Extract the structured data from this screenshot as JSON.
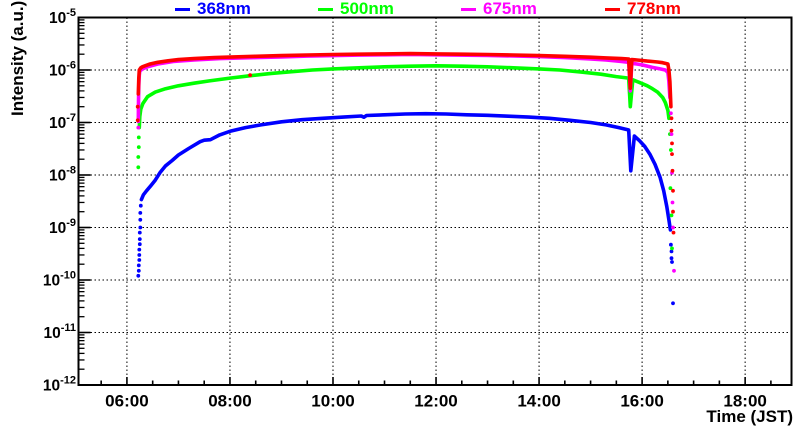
{
  "chart_data": {
    "type": "scatter",
    "title": "",
    "xlabel": "Time (JST)",
    "ylabel": "Intensity (a.u.)",
    "grid": true,
    "legend_position": "top",
    "axis_color": "#000000",
    "grid_color": "#000000",
    "x_axis": {
      "unit": "hour JST",
      "min_hour": 5.06,
      "max_hour": 18.9,
      "minor_step_hours": 0.5,
      "major_ticks": [
        {
          "hour": 6,
          "label": "06:00"
        },
        {
          "hour": 8,
          "label": "08:00"
        },
        {
          "hour": 10,
          "label": "10:00"
        },
        {
          "hour": 12,
          "label": "12:00"
        },
        {
          "hour": 14,
          "label": "14:00"
        },
        {
          "hour": 16,
          "label": "16:00"
        },
        {
          "hour": 18,
          "label": "18:00"
        }
      ]
    },
    "y_axis": {
      "scale": "log",
      "min": 1e-12,
      "max": 1e-05,
      "min_exp": -12,
      "max_exp": -5,
      "tick_exponents": [
        -5,
        -6,
        -7,
        -8,
        -9,
        -10,
        -11,
        -12
      ]
    },
    "series": [
      {
        "name": "368nm",
        "color": "#0000ff",
        "scatter": [
          [
            6.22,
            1.2e-10
          ],
          [
            6.23,
            1.5e-10
          ],
          [
            6.23,
            1.9e-10
          ],
          [
            6.24,
            2.4e-10
          ],
          [
            6.24,
            3e-10
          ],
          [
            6.24,
            3.8e-10
          ],
          [
            6.25,
            4.8e-10
          ],
          [
            6.25,
            6e-10
          ],
          [
            6.25,
            8e-10
          ],
          [
            6.26,
            1e-09
          ],
          [
            6.26,
            1.4e-09
          ],
          [
            6.26,
            1.9e-09
          ],
          [
            6.27,
            2.6e-09
          ],
          [
            16.56,
            4.7e-10
          ],
          [
            16.57,
            3.5e-10
          ],
          [
            16.57,
            2.6e-10
          ],
          [
            16.58,
            2.2e-10
          ],
          [
            16.6,
            3.6e-11
          ]
        ],
        "curve": [
          [
            6.28,
            3.4e-09
          ],
          [
            6.32,
            4.2e-09
          ],
          [
            6.38,
            5e-09
          ],
          [
            6.45,
            6e-09
          ],
          [
            6.55,
            8e-09
          ],
          [
            6.64,
            1.1e-08
          ],
          [
            6.75,
            1.5e-08
          ],
          [
            6.88,
            1.9e-08
          ],
          [
            7.0,
            2.4e-08
          ],
          [
            7.2,
            3.2e-08
          ],
          [
            7.42,
            4.3e-08
          ],
          [
            7.5,
            4.6e-08
          ],
          [
            7.62,
            4.7e-08
          ],
          [
            7.8,
            5.8e-08
          ],
          [
            8.0,
            6.8e-08
          ],
          [
            8.3,
            8e-08
          ],
          [
            8.6,
            9e-08
          ],
          [
            9.0,
            1.03e-07
          ],
          [
            9.4,
            1.13e-07
          ],
          [
            9.8,
            1.2e-07
          ],
          [
            10.2,
            1.27e-07
          ],
          [
            10.55,
            1.33e-07
          ],
          [
            10.6,
            1.26e-07
          ],
          [
            10.65,
            1.36e-07
          ],
          [
            11.0,
            1.4e-07
          ],
          [
            11.4,
            1.45e-07
          ],
          [
            11.8,
            1.47e-07
          ],
          [
            12.2,
            1.45e-07
          ],
          [
            12.6,
            1.4e-07
          ],
          [
            13.0,
            1.37e-07
          ],
          [
            13.4,
            1.32e-07
          ],
          [
            13.8,
            1.27e-07
          ],
          [
            14.2,
            1.2e-07
          ],
          [
            14.6,
            1.1e-07
          ],
          [
            15.0,
            1e-07
          ],
          [
            15.3,
            9e-08
          ],
          [
            15.55,
            8e-08
          ],
          [
            15.74,
            7.2e-08
          ],
          [
            15.78,
            1.2e-08
          ],
          [
            15.85,
            5.5e-08
          ],
          [
            15.95,
            4.5e-08
          ],
          [
            16.05,
            3.5e-08
          ],
          [
            16.15,
            2.5e-08
          ],
          [
            16.25,
            1.6e-08
          ],
          [
            16.35,
            9e-09
          ],
          [
            16.42,
            5e-09
          ],
          [
            16.48,
            2.5e-09
          ],
          [
            16.52,
            1.4e-09
          ],
          [
            16.55,
            9e-10
          ]
        ]
      },
      {
        "name": "500nm",
        "color": "#00ff00",
        "scatter": [
          [
            6.22,
            1.4e-08
          ],
          [
            6.22,
            2.2e-08
          ],
          [
            6.23,
            3.4e-08
          ],
          [
            6.23,
            5.2e-08
          ],
          [
            16.54,
            6e-08
          ],
          [
            16.56,
            3e-08
          ],
          [
            16.55,
            5.6e-09
          ],
          [
            16.57,
            1.7e-09
          ],
          [
            16.58,
            4e-10
          ]
        ],
        "curve": [
          [
            6.24,
            8e-08
          ],
          [
            6.25,
            1.3e-07
          ],
          [
            6.27,
            1.8e-07
          ],
          [
            6.31,
            2.3e-07
          ],
          [
            6.4,
            3.1e-07
          ],
          [
            6.55,
            3.8e-07
          ],
          [
            6.75,
            4.4e-07
          ],
          [
            7.0,
            5e-07
          ],
          [
            7.3,
            5.6e-07
          ],
          [
            7.6,
            6.2e-07
          ],
          [
            8.0,
            7e-07
          ],
          [
            8.4,
            7.8e-07
          ],
          [
            8.8,
            8.6e-07
          ],
          [
            9.2,
            9.3e-07
          ],
          [
            9.6,
            1e-06
          ],
          [
            10.0,
            1.05e-06
          ],
          [
            10.5,
            1.1e-06
          ],
          [
            11.0,
            1.15e-06
          ],
          [
            11.5,
            1.18e-06
          ],
          [
            12.0,
            1.2e-06
          ],
          [
            12.5,
            1.18e-06
          ],
          [
            13.0,
            1.15e-06
          ],
          [
            13.5,
            1.1e-06
          ],
          [
            14.0,
            1.05e-06
          ],
          [
            14.4,
            1e-06
          ],
          [
            14.8,
            9.2e-07
          ],
          [
            15.2,
            8.3e-07
          ],
          [
            15.5,
            7.5e-07
          ],
          [
            15.74,
            7e-07
          ],
          [
            15.77,
            2e-07
          ],
          [
            15.82,
            6.5e-07
          ],
          [
            16.0,
            5.5e-07
          ],
          [
            16.1,
            5e-07
          ],
          [
            16.2,
            4.4e-07
          ],
          [
            16.3,
            3.8e-07
          ],
          [
            16.4,
            3e-07
          ],
          [
            16.45,
            2.4e-07
          ],
          [
            16.5,
            1.7e-07
          ],
          [
            16.52,
            1.2e-07
          ]
        ]
      },
      {
        "name": "675nm",
        "color": "#ff00ff",
        "scatter": [
          [
            6.22,
            8e-08
          ],
          [
            16.56,
            1.5e-07
          ],
          [
            16.57,
            6e-08
          ],
          [
            16.58,
            1.1e-08
          ],
          [
            16.59,
            3e-09
          ],
          [
            16.6,
            1e-09
          ],
          [
            16.62,
            1.5e-10
          ]
        ],
        "curve": [
          [
            6.22,
            1.05e-07
          ],
          [
            6.225,
            2.5e-07
          ],
          [
            6.23,
            5e-07
          ],
          [
            6.24,
            8e-07
          ],
          [
            6.25,
            9.5e-07
          ],
          [
            6.3,
            1.05e-06
          ],
          [
            6.4,
            1.15e-06
          ],
          [
            6.6,
            1.3e-06
          ],
          [
            6.9,
            1.45e-06
          ],
          [
            7.3,
            1.55e-06
          ],
          [
            7.8,
            1.65e-06
          ],
          [
            8.5,
            1.72e-06
          ],
          [
            9.0,
            1.78e-06
          ],
          [
            9.5,
            1.84e-06
          ],
          [
            10.0,
            1.88e-06
          ],
          [
            10.5,
            1.92e-06
          ],
          [
            11.0,
            1.95e-06
          ],
          [
            11.5,
            1.97e-06
          ],
          [
            12.0,
            1.95e-06
          ],
          [
            13.0,
            1.9e-06
          ],
          [
            14.0,
            1.8e-06
          ],
          [
            14.5,
            1.72e-06
          ],
          [
            15.0,
            1.62e-06
          ],
          [
            15.3,
            1.55e-06
          ],
          [
            15.6,
            1.45e-06
          ],
          [
            15.74,
            1.4e-06
          ],
          [
            15.77,
            4e-07
          ],
          [
            15.8,
            1.35e-06
          ],
          [
            16.0,
            1.25e-06
          ],
          [
            16.2,
            1.12e-06
          ],
          [
            16.35,
            1.05e-06
          ],
          [
            16.45,
            1e-06
          ],
          [
            16.5,
            9e-07
          ],
          [
            16.52,
            6e-07
          ],
          [
            16.54,
            3e-07
          ]
        ]
      },
      {
        "name": "778nm",
        "color": "#ff0000",
        "scatter": [
          [
            6.21,
            1.1e-07
          ],
          [
            6.21,
            2e-07
          ],
          [
            8.39,
            8e-07
          ],
          [
            16.57,
            1.2e-07
          ],
          [
            16.57,
            7e-08
          ],
          [
            16.58,
            4e-08
          ],
          [
            16.58,
            2.5e-08
          ],
          [
            16.59,
            1.2e-08
          ],
          [
            16.6,
            5e-09
          ],
          [
            16.6,
            2e-09
          ],
          [
            16.61,
            8e-10
          ]
        ],
        "curve": [
          [
            6.22,
            3.5e-07
          ],
          [
            6.23,
            7e-07
          ],
          [
            6.24,
            1e-06
          ],
          [
            6.27,
            1.1e-06
          ],
          [
            6.3,
            1.15e-06
          ],
          [
            6.35,
            1.2e-06
          ],
          [
            6.45,
            1.3e-06
          ],
          [
            6.6,
            1.4e-06
          ],
          [
            6.8,
            1.5e-06
          ],
          [
            7.0,
            1.58e-06
          ],
          [
            7.3,
            1.65e-06
          ],
          [
            7.7,
            1.72e-06
          ],
          [
            8.0,
            1.76e-06
          ],
          [
            8.5,
            1.82e-06
          ],
          [
            9.0,
            1.88e-06
          ],
          [
            9.5,
            1.93e-06
          ],
          [
            10.0,
            1.97e-06
          ],
          [
            10.5,
            2e-06
          ],
          [
            11.0,
            2.03e-06
          ],
          [
            11.5,
            2.05e-06
          ],
          [
            12.0,
            2.03e-06
          ],
          [
            12.5,
            2e-06
          ],
          [
            13.0,
            1.97e-06
          ],
          [
            13.5,
            1.93e-06
          ],
          [
            14.0,
            1.88e-06
          ],
          [
            14.5,
            1.82e-06
          ],
          [
            15.0,
            1.75e-06
          ],
          [
            15.3,
            1.7e-06
          ],
          [
            15.6,
            1.65e-06
          ],
          [
            15.74,
            1.62e-06
          ],
          [
            15.77,
            4.5e-07
          ],
          [
            15.8,
            1.58e-06
          ],
          [
            15.9,
            1.55e-06
          ],
          [
            16.0,
            1.52e-06
          ],
          [
            16.1,
            1.48e-06
          ],
          [
            16.2,
            1.45e-06
          ],
          [
            16.3,
            1.42e-06
          ],
          [
            16.4,
            1.38e-06
          ],
          [
            16.5,
            1.3e-06
          ],
          [
            16.52,
            1e-06
          ],
          [
            16.54,
            6e-07
          ],
          [
            16.55,
            3.5e-07
          ],
          [
            16.56,
            2e-07
          ]
        ]
      }
    ],
    "legend": {
      "entries": [
        "368nm",
        "500nm",
        "675nm",
        "778nm"
      ]
    }
  }
}
